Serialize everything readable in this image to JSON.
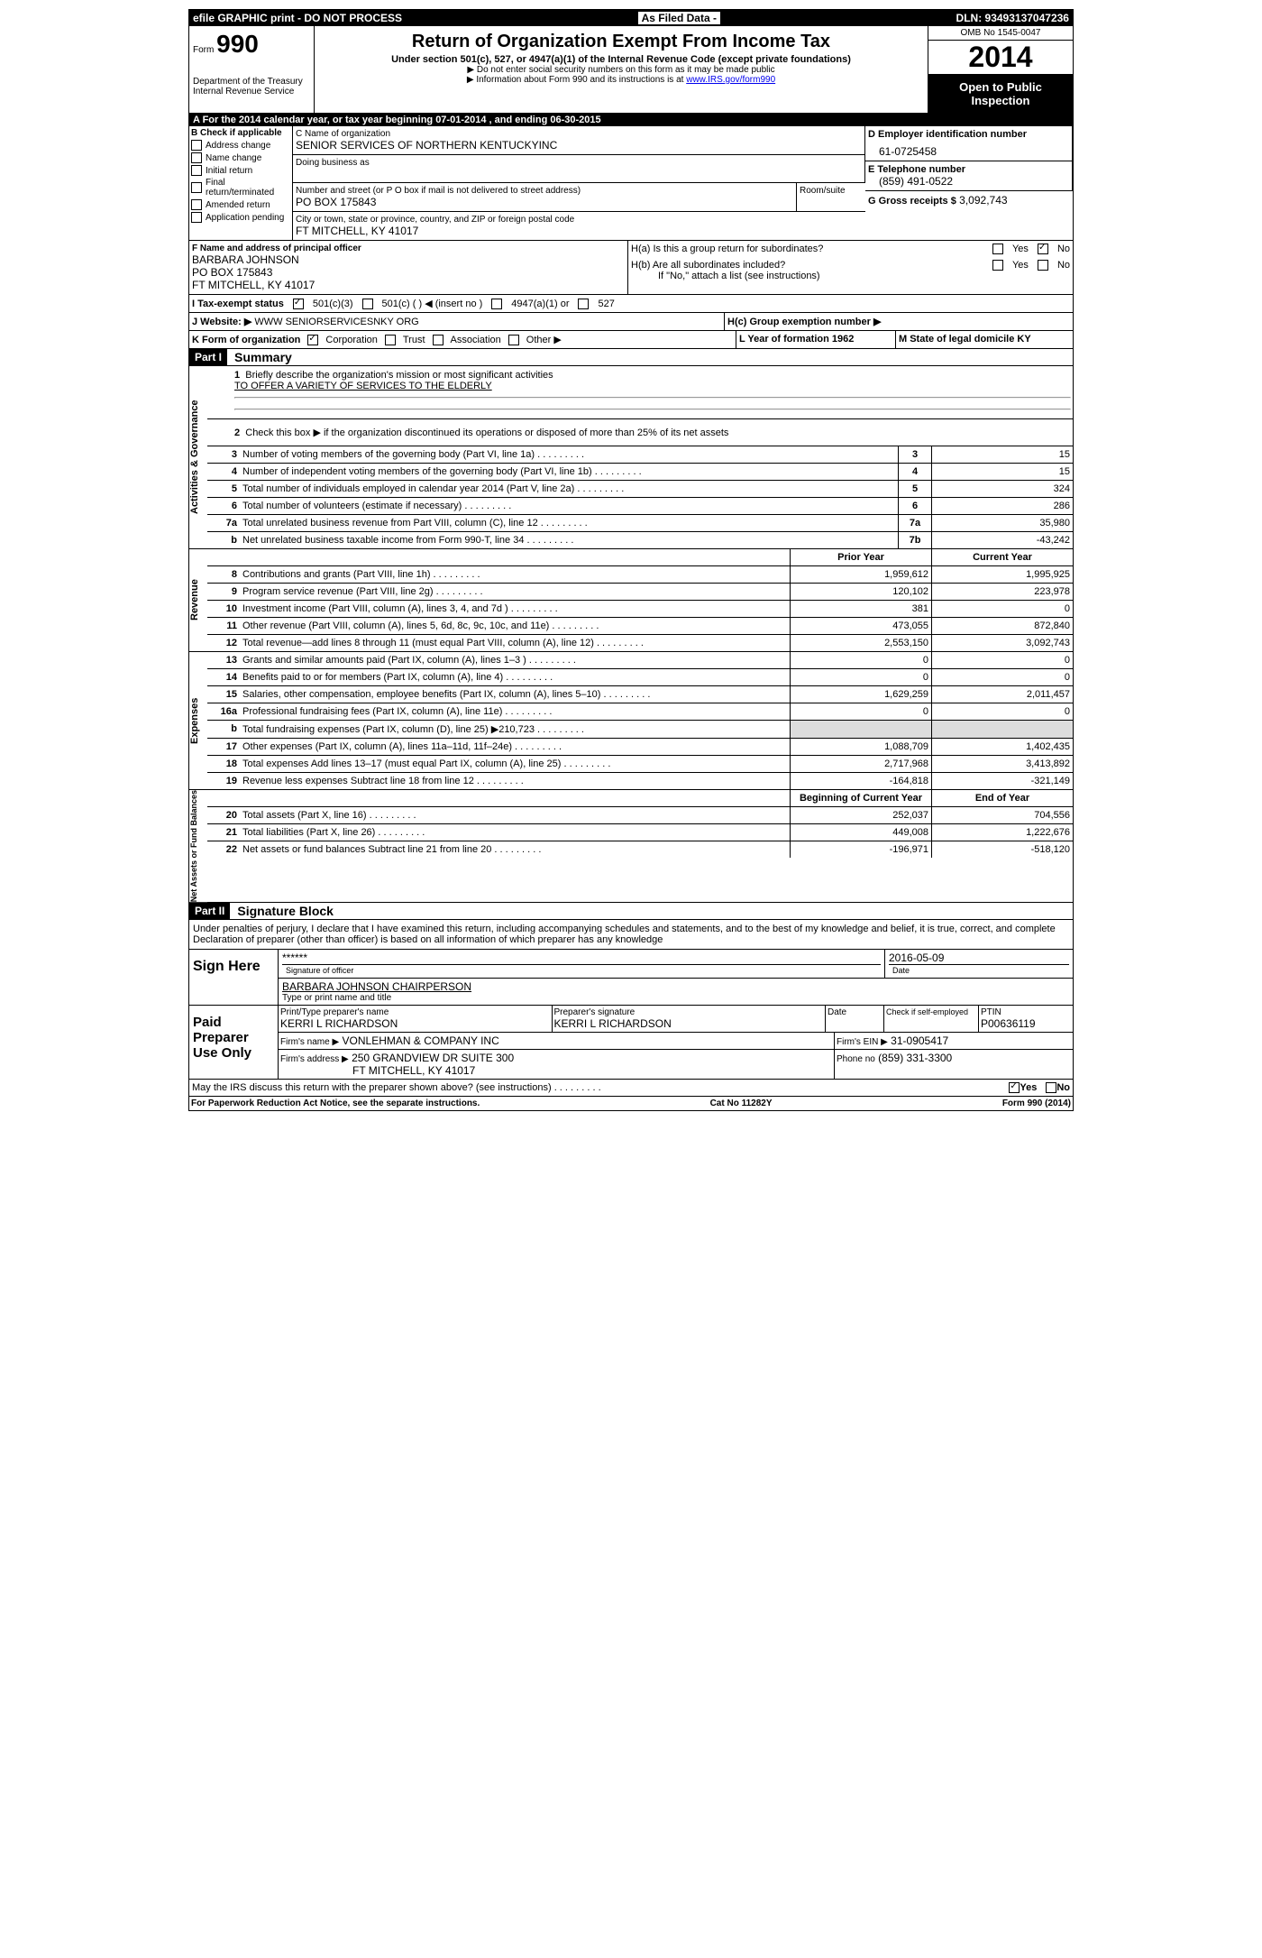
{
  "top_bar": {
    "left": "efile GRAPHIC print - DO NOT PROCESS",
    "mid": "As Filed Data -",
    "right": "DLN: 93493137047236"
  },
  "header": {
    "form_label": "Form",
    "form_no": "990",
    "dept": "Department of the Treasury",
    "irs": "Internal Revenue Service",
    "title": "Return of Organization Exempt From Income Tax",
    "subtitle": "Under section 501(c), 527, or 4947(a)(1) of the Internal Revenue Code (except private foundations)",
    "note1": "▶ Do not enter social security numbers on this form as it may be made public",
    "note2": "▶ Information about Form 990 and its instructions is at",
    "note2_link": "www.IRS.gov/form990",
    "omb": "OMB No 1545-0047",
    "year": "2014",
    "public": "Open to Public Inspection"
  },
  "sectionA": {
    "tax_year_label": "A For the 2014 calendar year, or tax year beginning 07-01-2014     , and ending 06-30-2015",
    "b_label": "B Check if applicable",
    "checks": [
      "Address change",
      "Name change",
      "Initial return",
      "Final return/terminated",
      "Amended return",
      "Application pending"
    ],
    "c_name_label": "C Name of organization",
    "org_name": "SENIOR SERVICES OF NORTHERN KENTUCKYINC",
    "dba_label": "Doing business as",
    "addr_label": "Number and street (or P O  box if mail is not delivered to street address)",
    "room_label": "Room/suite",
    "addr": "PO BOX 175843",
    "city_label": "City or town, state or province, country, and ZIP or foreign postal code",
    "city": "FT MITCHELL, KY  41017",
    "d_label": "D Employer identification number",
    "ein": "61-0725458",
    "e_label": "E Telephone number",
    "phone": "(859) 491-0522",
    "g_label": "G Gross receipts $",
    "gross": "3,092,743",
    "f_label": "F   Name and address of principal officer",
    "officer_name": "BARBARA JOHNSON",
    "officer_addr1": "PO BOX 175843",
    "officer_addr2": "FT MITCHELL, KY  41017",
    "ha_label": "H(a)  Is this a group return for subordinates?",
    "hb_label": "H(b)  Are all subordinates included?",
    "hb_note": "If \"No,\" attach a list  (see instructions)",
    "hc_label": "H(c)   Group exemption number ▶",
    "yes": "Yes",
    "no": "No",
    "i_label": "I   Tax-exempt status",
    "i_501c3": "501(c)(3)",
    "i_501c": "501(c) (    ) ◀ (insert no )",
    "i_4947": "4947(a)(1) or",
    "i_527": "527",
    "j_label": "J  Website: ▶",
    "website": "WWW SENIORSERVICESNKY ORG",
    "k_label": "K Form of organization",
    "k_corp": "Corporation",
    "k_trust": "Trust",
    "k_assoc": "Association",
    "k_other": "Other ▶",
    "l_label": "L Year of formation  1962",
    "m_label": "M State of legal domicile  KY"
  },
  "part1": {
    "label": "Part I",
    "title": "Summary",
    "line1_label": "Briefly describe the organization's mission or most significant activities",
    "mission": "TO OFFER A VARIETY OF SERVICES TO THE ELDERLY",
    "line2_label": "Check this box ▶      if the organization discontinued its operations or disposed of more than 25% of its net assets",
    "vert_gov": "Activities & Governance",
    "vert_rev": "Revenue",
    "vert_exp": "Expenses",
    "vert_net": "Net Assets or Fund Balances",
    "lines_gov": [
      {
        "n": "3",
        "d": "Number of voting members of the governing body (Part VI, line 1a)",
        "box": "3",
        "v": "15"
      },
      {
        "n": "4",
        "d": "Number of independent voting members of the governing body (Part VI, line 1b)",
        "box": "4",
        "v": "15"
      },
      {
        "n": "5",
        "d": "Total number of individuals employed in calendar year 2014 (Part V, line 2a)",
        "box": "5",
        "v": "324"
      },
      {
        "n": "6",
        "d": "Total number of volunteers (estimate if necessary)",
        "box": "6",
        "v": "286"
      },
      {
        "n": "7a",
        "d": "Total unrelated business revenue from Part VIII, column (C), line 12",
        "box": "7a",
        "v": "35,980"
      },
      {
        "n": "b",
        "d": "Net unrelated business taxable income from Form 990-T, line 34",
        "box": "7b",
        "v": "-43,242"
      }
    ],
    "prior_year": "Prior Year",
    "current_year": "Current Year",
    "lines_rev": [
      {
        "n": "8",
        "d": "Contributions and grants (Part VIII, line 1h)",
        "py": "1,959,612",
        "cy": "1,995,925"
      },
      {
        "n": "9",
        "d": "Program service revenue (Part VIII, line 2g)",
        "py": "120,102",
        "cy": "223,978"
      },
      {
        "n": "10",
        "d": "Investment income (Part VIII, column (A), lines 3, 4, and 7d )",
        "py": "381",
        "cy": "0"
      },
      {
        "n": "11",
        "d": "Other revenue (Part VIII, column (A), lines 5, 6d, 8c, 9c, 10c, and 11e)",
        "py": "473,055",
        "cy": "872,840"
      },
      {
        "n": "12",
        "d": "Total revenue—add lines 8 through 11 (must equal Part VIII, column (A), line 12)",
        "py": "2,553,150",
        "cy": "3,092,743"
      }
    ],
    "lines_exp": [
      {
        "n": "13",
        "d": "Grants and similar amounts paid (Part IX, column (A), lines 1–3 )",
        "py": "0",
        "cy": "0"
      },
      {
        "n": "14",
        "d": "Benefits paid to or for members (Part IX, column (A), line 4)",
        "py": "0",
        "cy": "0"
      },
      {
        "n": "15",
        "d": "Salaries, other compensation, employee benefits (Part IX, column (A), lines 5–10)",
        "py": "1,629,259",
        "cy": "2,011,457"
      },
      {
        "n": "16a",
        "d": "Professional fundraising fees (Part IX, column (A), line 11e)",
        "py": "0",
        "cy": "0"
      },
      {
        "n": "b",
        "d": "Total fundraising expenses (Part IX, column (D), line 25) ▶210,723",
        "py": "",
        "cy": "",
        "shaded": true
      },
      {
        "n": "17",
        "d": "Other expenses (Part IX, column (A), lines 11a–11d, 11f–24e)",
        "py": "1,088,709",
        "cy": "1,402,435"
      },
      {
        "n": "18",
        "d": "Total expenses  Add lines 13–17 (must equal Part IX, column (A), line 25)",
        "py": "2,717,968",
        "cy": "3,413,892"
      },
      {
        "n": "19",
        "d": "Revenue less expenses  Subtract line 18 from line 12",
        "py": "-164,818",
        "cy": "-321,149"
      }
    ],
    "begin_year": "Beginning of Current Year",
    "end_year": "End of Year",
    "lines_net": [
      {
        "n": "20",
        "d": "Total assets (Part X, line 16)",
        "py": "252,037",
        "cy": "704,556"
      },
      {
        "n": "21",
        "d": "Total liabilities (Part X, line 26)",
        "py": "449,008",
        "cy": "1,222,676"
      },
      {
        "n": "22",
        "d": "Net assets or fund balances  Subtract line 21 from line 20",
        "py": "-196,971",
        "cy": "-518,120"
      }
    ]
  },
  "part2": {
    "label": "Part II",
    "title": "Signature Block",
    "perjury": "Under penalties of perjury, I declare that I have examined this return, including accompanying schedules and statements, and to the best of my knowledge and belief, it is true, correct, and complete  Declaration of preparer (other than officer) is based on all information of which preparer has any knowledge",
    "sign_here": "Sign Here",
    "sig_stars": "******",
    "sig_officer_label": "Signature of officer",
    "sig_date": "2016-05-09",
    "date_label": "Date",
    "officer_title": "BARBARA JOHNSON CHAIRPERSON",
    "type_name_label": "Type or print name and title",
    "paid_prep": "Paid Preparer Use Only",
    "prep_name_label": "Print/Type preparer's name",
    "prep_name": "KERRI L RICHARDSON",
    "prep_sig_label": "Preparer's signature",
    "prep_sig": "KERRI L RICHARDSON",
    "check_self": "Check       if self-employed",
    "ptin_label": "PTIN",
    "ptin": "P00636119",
    "firm_name_label": "Firm's name     ▶",
    "firm_name": "VONLEHMAN & COMPANY INC",
    "firm_ein_label": "Firm's EIN ▶",
    "firm_ein": "31-0905417",
    "firm_addr_label": "Firm's address ▶",
    "firm_addr": "250 GRANDVIEW DR SUITE 300",
    "firm_city": "FT MITCHELL, KY  41017",
    "firm_phone_label": "Phone no",
    "firm_phone": "(859) 331-3300",
    "discuss": "May the IRS discuss this return with the preparer shown above? (see instructions)",
    "yes": "Yes",
    "no": "No"
  },
  "footer": {
    "left": "For Paperwork Reduction Act Notice, see the separate instructions.",
    "mid": "Cat No 11282Y",
    "right": "Form 990 (2014)"
  }
}
